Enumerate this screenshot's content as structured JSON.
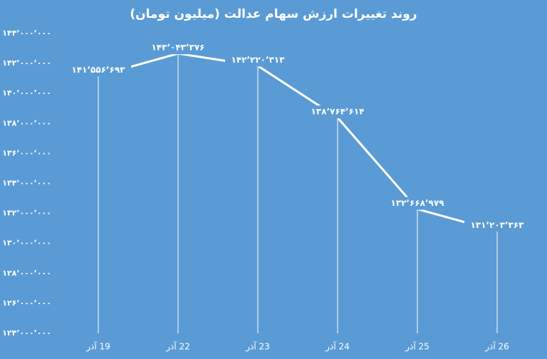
{
  "chart_data": {
    "type": "line",
    "title": "روند تغییرات ارزش سهام عدالت (میلیون تومان)",
    "categories": [
      "19 آذر",
      "22 آذر",
      "23 آذر",
      "24 آذر",
      "25 آذر",
      "26 آذر"
    ],
    "values": [
      141556693,
      143043376,
      142220313,
      138764614,
      132668979,
      131203363
    ],
    "value_labels": [
      "۱۴۱٬۵۵۶٬۶۹۳",
      "۱۴۳٬۰۴۳٬۳۷۶",
      "۱۴۲٬۲۲۰٬۳۱۳",
      "۱۳۸٬۷۶۴٬۶۱۴",
      "۱۳۲٬۶۶۸٬۹۷۹",
      "۱۳۱٬۲۰۳٬۳۶۳"
    ],
    "color": "#ffffff",
    "ylim": [
      124000000,
      144000000
    ],
    "yticks": [
      {
        "value": 124000000,
        "label": "۱۲۴٬۰۰۰٬۰۰۰"
      },
      {
        "value": 126000000,
        "label": "۱۲۶٬۰۰۰٬۰۰۰"
      },
      {
        "value": 128000000,
        "label": "۱۲۸٬۰۰۰٬۰۰۰"
      },
      {
        "value": 130000000,
        "label": "۱۳۰٬۰۰۰٬۰۰۰"
      },
      {
        "value": 132000000,
        "label": "۱۳۲٬۰۰۰٬۰۰۰"
      },
      {
        "value": 134000000,
        "label": "۱۳۴٬۰۰۰٬۰۰۰"
      },
      {
        "value": 136000000,
        "label": "۱۳۶٬۰۰۰٬۰۰۰"
      },
      {
        "value": 138000000,
        "label": "۱۳۸٬۰۰۰٬۰۰۰"
      },
      {
        "value": 140000000,
        "label": "۱۴۰٬۰۰۰٬۰۰۰"
      },
      {
        "value": 142000000,
        "label": "۱۴۲٬۰۰۰٬۰۰۰"
      },
      {
        "value": 144000000,
        "label": "۱۴۴٬۰۰۰٬۰۰۰"
      }
    ],
    "grid": false
  }
}
